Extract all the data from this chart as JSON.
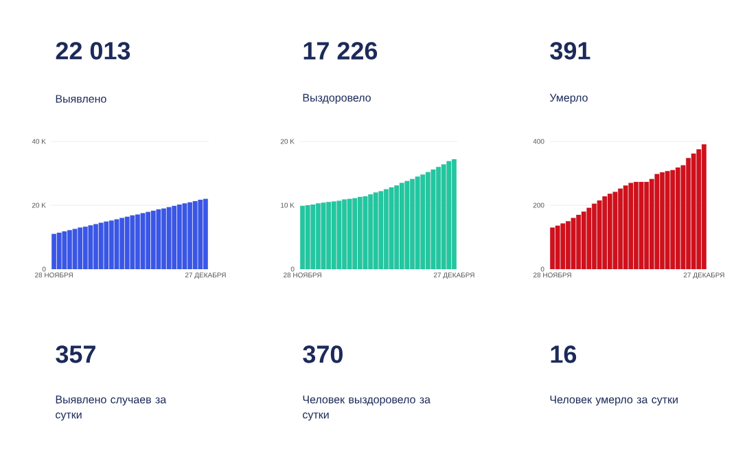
{
  "chart_data": [
    {
      "type": "bar",
      "title": "22 013",
      "subtitle": "Выявлено",
      "color": "#3a56e8",
      "categories": [
        "28 НОЯБРЯ",
        null,
        null,
        null,
        null,
        null,
        null,
        null,
        null,
        null,
        null,
        null,
        null,
        null,
        null,
        null,
        null,
        null,
        null,
        null,
        null,
        null,
        null,
        null,
        null,
        null,
        null,
        null,
        null,
        "27 ДЕКАБРЯ"
      ],
      "values": [
        11000,
        11400,
        11800,
        12200,
        12600,
        13000,
        13300,
        13700,
        14100,
        14500,
        14900,
        15200,
        15600,
        16000,
        16400,
        16800,
        17100,
        17500,
        17900,
        18300,
        18700,
        19000,
        19400,
        19800,
        20200,
        20600,
        20900,
        21300,
        21700,
        22000
      ],
      "ylim": [
        0,
        40000
      ],
      "yticks": [
        0,
        {
          "value": 20000,
          "label": "20 K"
        },
        {
          "value": 40000,
          "label": "40 K"
        }
      ],
      "grid": "y",
      "annotations": [
        "357",
        "Выявлено случаев за сутки"
      ]
    },
    {
      "type": "bar",
      "title": "17 226",
      "subtitle": "Выздоровело",
      "color": "#22c7a0",
      "categories": [
        "28 НОЯБРЯ",
        null,
        null,
        null,
        null,
        null,
        null,
        null,
        null,
        null,
        null,
        null,
        null,
        null,
        null,
        null,
        null,
        null,
        null,
        null,
        null,
        null,
        null,
        null,
        null,
        null,
        null,
        null,
        null,
        "27 ДЕКАБРЯ"
      ],
      "values": [
        9900,
        10000,
        10100,
        10300,
        10400,
        10500,
        10600,
        10700,
        10900,
        11000,
        11100,
        11300,
        11400,
        11700,
        12000,
        12200,
        12500,
        12800,
        13100,
        13500,
        13800,
        14100,
        14500,
        14800,
        15200,
        15600,
        16000,
        16400,
        16900,
        17200
      ],
      "ylim": [
        0,
        20000
      ],
      "yticks": [
        0,
        {
          "value": 10000,
          "label": "10 K"
        },
        {
          "value": 20000,
          "label": "20 K"
        }
      ],
      "grid": "y",
      "annotations": [
        "370",
        "Человек выздоровело за сутки"
      ]
    },
    {
      "type": "bar",
      "title": "391",
      "subtitle": "Умерло",
      "color": "#d0101c",
      "categories": [
        "28 НОЯБРЯ",
        null,
        null,
        null,
        null,
        null,
        null,
        null,
        null,
        null,
        null,
        null,
        null,
        null,
        null,
        null,
        null,
        null,
        null,
        null,
        null,
        null,
        null,
        null,
        null,
        null,
        null,
        null,
        null,
        "27 ДЕКАБРЯ"
      ],
      "values": [
        130,
        136,
        143,
        150,
        160,
        170,
        180,
        192,
        205,
        215,
        228,
        236,
        242,
        252,
        262,
        270,
        273,
        273,
        273,
        282,
        298,
        303,
        307,
        310,
        318,
        325,
        348,
        362,
        375,
        391
      ],
      "ylim": [
        0,
        400
      ],
      "yticks": [
        0,
        200,
        400
      ],
      "grid": "y",
      "annotations": [
        "16",
        "Человек умерло за сутки"
      ]
    }
  ]
}
